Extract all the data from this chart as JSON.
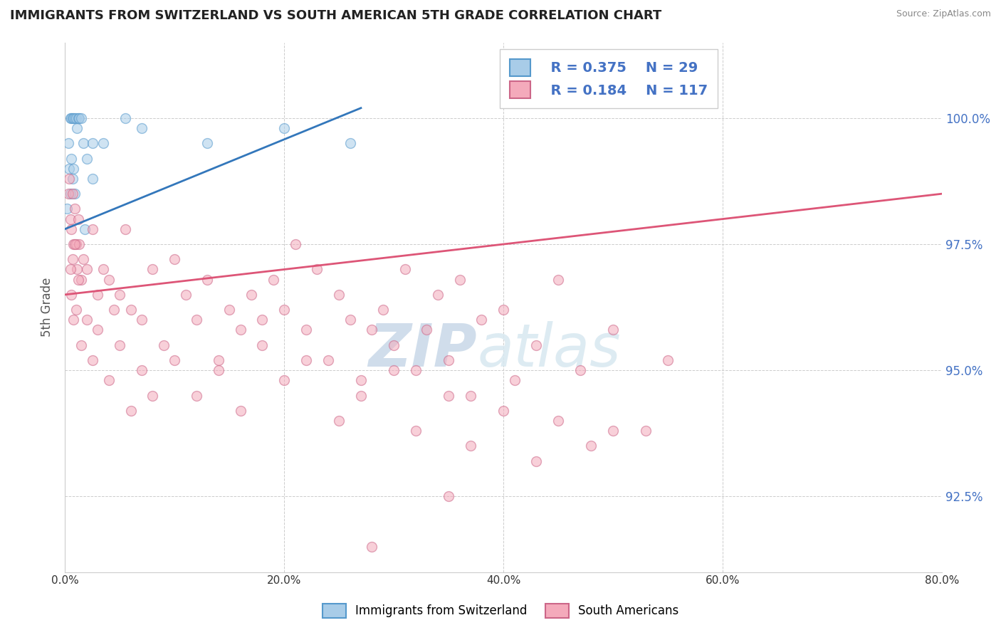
{
  "title": "IMMIGRANTS FROM SWITZERLAND VS SOUTH AMERICAN 5TH GRADE CORRELATION CHART",
  "source": "Source: ZipAtlas.com",
  "ylabel": "5th Grade",
  "xlim": [
    0.0,
    80.0
  ],
  "ylim": [
    91.0,
    101.5
  ],
  "ytick_values": [
    92.5,
    95.0,
    97.5,
    100.0
  ],
  "xtick_values": [
    0,
    20,
    40,
    60,
    80
  ],
  "legend_r_blue": "R = 0.375",
  "legend_n_blue": "N = 29",
  "legend_r_pink": "R = 0.184",
  "legend_n_pink": "N = 117",
  "legend_label_blue": "Immigrants from Switzerland",
  "legend_label_pink": "South Americans",
  "blue_color": "#A8CCE8",
  "pink_color": "#F4AABB",
  "blue_edge_color": "#5599CC",
  "pink_edge_color": "#CC6688",
  "blue_line_color": "#3377BB",
  "pink_line_color": "#DD5577",
  "grid_color": "#CCCCCC",
  "watermark_zip": "ZIP",
  "watermark_atlas": "atlas",
  "right_ytick_color": "#4472C4",
  "blue_scatter_x": [
    0.3,
    0.5,
    0.6,
    0.7,
    0.8,
    0.9,
    1.0,
    1.1,
    1.2,
    1.3,
    1.5,
    1.7,
    2.0,
    2.5,
    3.5,
    5.5,
    7.0,
    13.0,
    20.0,
    26.0
  ],
  "blue_scatter_y": [
    99.5,
    100.0,
    100.0,
    100.0,
    100.0,
    100.0,
    100.0,
    99.8,
    100.0,
    100.0,
    100.0,
    99.5,
    99.2,
    98.8,
    99.5,
    100.0,
    99.8,
    99.5,
    99.8,
    99.5
  ],
  "blue_extra_x": [
    0.2,
    0.4,
    0.5,
    0.6,
    0.7,
    0.8,
    0.9,
    1.8,
    2.5
  ],
  "blue_extra_y": [
    98.2,
    99.0,
    98.5,
    99.2,
    98.8,
    99.0,
    98.5,
    97.8,
    99.5
  ],
  "pink_scatter_x": [
    0.3,
    0.4,
    0.5,
    0.6,
    0.7,
    0.8,
    0.9,
    1.0,
    1.1,
    1.2,
    1.3,
    1.5,
    1.7,
    2.0,
    2.5,
    3.0,
    3.5,
    4.0,
    4.5,
    5.0,
    5.5,
    6.0,
    7.0,
    8.0,
    9.0,
    10.0,
    11.0,
    12.0,
    13.0,
    14.0,
    15.0,
    16.0,
    17.0,
    18.0,
    19.0,
    20.0,
    21.0,
    22.0,
    23.0,
    24.0,
    25.0,
    26.0,
    27.0,
    28.0,
    29.0,
    30.0,
    31.0,
    32.0,
    33.0,
    34.0,
    35.0,
    36.0,
    37.0,
    38.0,
    40.0,
    41.0,
    43.0,
    45.0,
    47.0,
    50.0,
    53.0,
    55.0
  ],
  "pink_scatter_y": [
    98.5,
    98.8,
    98.0,
    97.8,
    98.5,
    97.5,
    98.2,
    97.5,
    97.0,
    98.0,
    97.5,
    96.8,
    97.2,
    97.0,
    97.8,
    96.5,
    97.0,
    96.8,
    96.2,
    96.5,
    97.8,
    96.2,
    96.0,
    97.0,
    95.5,
    97.2,
    96.5,
    96.0,
    96.8,
    95.2,
    96.2,
    95.8,
    96.5,
    96.0,
    96.8,
    96.2,
    97.5,
    95.8,
    97.0,
    95.2,
    96.5,
    96.0,
    94.8,
    95.8,
    96.2,
    95.5,
    97.0,
    95.0,
    95.8,
    96.5,
    95.2,
    96.8,
    94.5,
    96.0,
    96.2,
    94.8,
    95.5,
    96.8,
    95.0,
    95.8,
    93.8,
    95.2
  ],
  "pink_low_x": [
    0.5,
    0.6,
    0.7,
    0.8,
    0.9,
    1.0,
    1.2,
    1.5,
    2.0,
    2.5,
    3.0,
    4.0,
    5.0,
    6.0,
    7.0,
    8.0,
    10.0,
    12.0,
    14.0,
    16.0,
    18.0,
    20.0,
    22.0,
    25.0,
    27.0,
    30.0,
    32.0,
    35.0,
    37.0,
    40.0,
    43.0,
    45.0,
    48.0,
    50.0,
    35.0,
    28.0
  ],
  "pink_low_y": [
    97.0,
    96.5,
    97.2,
    96.0,
    97.5,
    96.2,
    96.8,
    95.5,
    96.0,
    95.2,
    95.8,
    94.8,
    95.5,
    94.2,
    95.0,
    94.5,
    95.2,
    94.5,
    95.0,
    94.2,
    95.5,
    94.8,
    95.2,
    94.0,
    94.5,
    95.0,
    93.8,
    94.5,
    93.5,
    94.2,
    93.2,
    94.0,
    93.5,
    93.8,
    92.5,
    91.5
  ],
  "blue_trend_x": [
    0.0,
    27.0
  ],
  "blue_trend_y": [
    97.8,
    100.2
  ],
  "pink_trend_x": [
    0.0,
    80.0
  ],
  "pink_trend_y": [
    96.5,
    98.5
  ],
  "marker_size": 100,
  "marker_alpha": 0.55,
  "background_color": "#FFFFFF"
}
